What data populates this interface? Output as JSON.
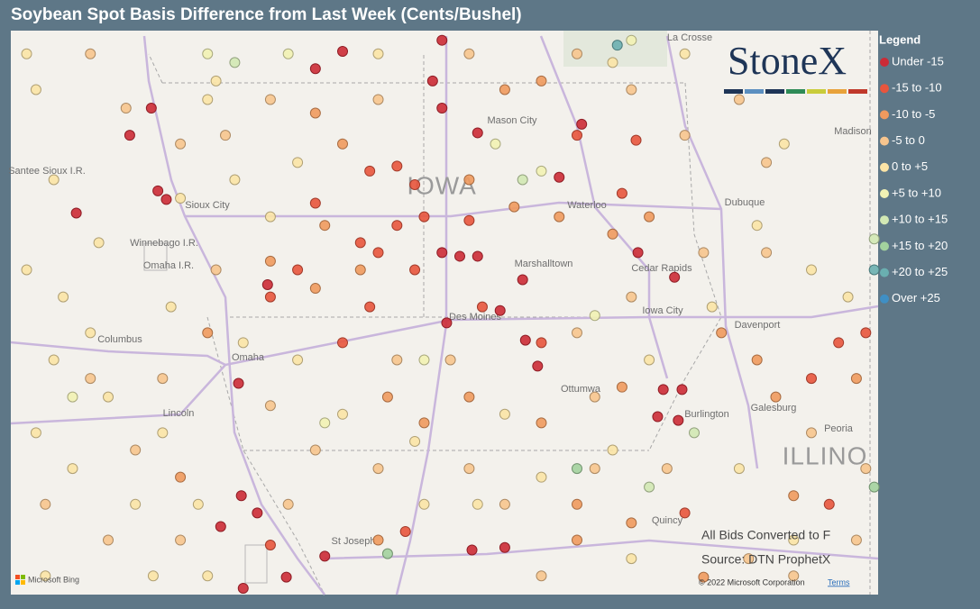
{
  "title": "Soybean Spot Basis Difference from Last Week (Cents/Bushel)",
  "logo": "StoneX",
  "legend": {
    "title": "Legend",
    "items": [
      {
        "label": "Under -15",
        "color": "#cc2b36"
      },
      {
        "label": "-15 to -10",
        "color": "#e8553d"
      },
      {
        "label": "-10 to -5",
        "color": "#f09a5e"
      },
      {
        "label": "-5 to 0",
        "color": "#f7c58e"
      },
      {
        "label": "0 to +5",
        "color": "#fbe4a6"
      },
      {
        "label": "+5 to +10",
        "color": "#f2f2b4"
      },
      {
        "label": "+10 to +15",
        "color": "#d2e8b4"
      },
      {
        "label": "+15 to +20",
        "color": "#a3d29e"
      },
      {
        "label": "+20 to +25",
        "color": "#6aafb0"
      },
      {
        "label": "Over +25",
        "color": "#3f8fc4"
      }
    ]
  },
  "notes": [
    "All Bids Converted to F",
    "Source: DTN ProphetX"
  ],
  "attribution": {
    "bing": "Microsoft Bing",
    "copyright": "© 2022 Microsoft Corporation",
    "terms": "Terms"
  },
  "places": [
    "Sioux City",
    "IOWA",
    "Mason City",
    "Waterloo",
    "Dubuque",
    "Marshalltown",
    "Cedar Rapids",
    "Iowa City",
    "Davenport",
    "Des Moines",
    "Ottumwa",
    "Burlington",
    "Galesburg",
    "Peoria",
    "ILLINO",
    "Omaha",
    "Lincoln",
    "Columbus",
    "St Joseph",
    "Winnebago I.R.",
    "Omaha I.R.",
    "Santee Sioux I.R.",
    "La Crosse",
    "Madison",
    "Quincy"
  ],
  "points": [
    {
      "lon": -94.69,
      "lat": 43.8,
      "bin": 0
    },
    {
      "lon": -93.63,
      "lat": 43.89,
      "bin": 0
    },
    {
      "lon": -94.98,
      "lat": 43.66,
      "bin": 0
    },
    {
      "lon": -93.73,
      "lat": 43.56,
      "bin": 0
    },
    {
      "lon": -93.63,
      "lat": 43.34,
      "bin": 0
    },
    {
      "lon": -96.73,
      "lat": 43.34,
      "bin": 0
    },
    {
      "lon": -96.96,
      "lat": 43.12,
      "bin": 0
    },
    {
      "lon": -96.66,
      "lat": 42.67,
      "bin": 0
    },
    {
      "lon": -96.57,
      "lat": 42.6,
      "bin": 0
    },
    {
      "lon": -97.53,
      "lat": 42.49,
      "bin": 0
    },
    {
      "lon": -93.25,
      "lat": 43.14,
      "bin": 0
    },
    {
      "lon": -92.38,
      "lat": 42.78,
      "bin": 0
    },
    {
      "lon": -92.14,
      "lat": 43.21,
      "bin": 0
    },
    {
      "lon": -91.54,
      "lat": 42.17,
      "bin": 0
    },
    {
      "lon": -93.63,
      "lat": 42.17,
      "bin": 0
    },
    {
      "lon": -93.44,
      "lat": 42.14,
      "bin": 0
    },
    {
      "lon": -93.25,
      "lat": 42.14,
      "bin": 0
    },
    {
      "lon": -92.77,
      "lat": 41.95,
      "bin": 0
    },
    {
      "lon": -93.01,
      "lat": 41.7,
      "bin": 0
    },
    {
      "lon": -93.58,
      "lat": 41.6,
      "bin": 0
    },
    {
      "lon": -92.74,
      "lat": 41.46,
      "bin": 0
    },
    {
      "lon": -92.61,
      "lat": 41.25,
      "bin": 0
    },
    {
      "lon": -91.27,
      "lat": 41.06,
      "bin": 0
    },
    {
      "lon": -91.07,
      "lat": 41.06,
      "bin": 0
    },
    {
      "lon": -91.33,
      "lat": 40.84,
      "bin": 0
    },
    {
      "lon": -91.11,
      "lat": 40.81,
      "bin": 0
    },
    {
      "lon": -95.8,
      "lat": 41.11,
      "bin": 0
    },
    {
      "lon": -95.77,
      "lat": 40.2,
      "bin": 0
    },
    {
      "lon": -95.6,
      "lat": 40.06,
      "bin": 0
    },
    {
      "lon": -95.99,
      "lat": 39.95,
      "bin": 0
    },
    {
      "lon": -94.88,
      "lat": 39.71,
      "bin": 0
    },
    {
      "lon": -93.31,
      "lat": 39.76,
      "bin": 0
    },
    {
      "lon": -92.96,
      "lat": 39.78,
      "bin": 0
    },
    {
      "lon": -95.29,
      "lat": 39.54,
      "bin": 0
    },
    {
      "lon": -95.75,
      "lat": 39.45,
      "bin": 0
    },
    {
      "lon": -91.15,
      "lat": 41.97,
      "bin": 0
    },
    {
      "lon": -95.49,
      "lat": 41.91,
      "bin": 0
    },
    {
      "lon": -94.4,
      "lat": 42.83,
      "bin": 1
    },
    {
      "lon": -94.11,
      "lat": 42.87,
      "bin": 1
    },
    {
      "lon": -93.92,
      "lat": 42.72,
      "bin": 1
    },
    {
      "lon": -94.5,
      "lat": 42.25,
      "bin": 1
    },
    {
      "lon": -94.31,
      "lat": 42.17,
      "bin": 1
    },
    {
      "lon": -95.46,
      "lat": 41.81,
      "bin": 1
    },
    {
      "lon": -94.69,
      "lat": 41.44,
      "bin": 1
    },
    {
      "lon": -93.92,
      "lat": 42.03,
      "bin": 1
    },
    {
      "lon": -93.2,
      "lat": 41.73,
      "bin": 1
    },
    {
      "lon": -92.57,
      "lat": 41.44,
      "bin": 1
    },
    {
      "lon": -92.19,
      "lat": 43.12,
      "bin": 1
    },
    {
      "lon": -91.56,
      "lat": 43.08,
      "bin": 1
    },
    {
      "lon": -89.4,
      "lat": 41.44,
      "bin": 1
    },
    {
      "lon": -89.11,
      "lat": 41.52,
      "bin": 1
    },
    {
      "lon": -89.69,
      "lat": 41.15,
      "bin": 1
    },
    {
      "lon": -89.5,
      "lat": 40.13,
      "bin": 1
    },
    {
      "lon": -93.82,
      "lat": 42.46,
      "bin": 1
    },
    {
      "lon": -94.11,
      "lat": 42.39,
      "bin": 1
    },
    {
      "lon": -94.98,
      "lat": 42.57,
      "bin": 1
    },
    {
      "lon": -95.17,
      "lat": 42.03,
      "bin": 1
    },
    {
      "lon": -94.4,
      "lat": 41.73,
      "bin": 1
    },
    {
      "lon": -93.34,
      "lat": 42.43,
      "bin": 1
    },
    {
      "lon": -91.71,
      "lat": 42.65,
      "bin": 1
    },
    {
      "lon": -95.46,
      "lat": 39.8,
      "bin": 1
    },
    {
      "lon": -94.02,
      "lat": 39.91,
      "bin": 1
    },
    {
      "lon": -91.04,
      "lat": 40.06,
      "bin": 1
    },
    {
      "lon": -92.96,
      "lat": 43.49,
      "bin": 2
    },
    {
      "lon": -92.57,
      "lat": 43.56,
      "bin": 2
    },
    {
      "lon": -92.86,
      "lat": 42.54,
      "bin": 2
    },
    {
      "lon": -92.38,
      "lat": 42.46,
      "bin": 2
    },
    {
      "lon": -91.81,
      "lat": 42.32,
      "bin": 2
    },
    {
      "lon": -91.42,
      "lat": 42.46,
      "bin": 2
    },
    {
      "lon": -94.69,
      "lat": 43.05,
      "bin": 2
    },
    {
      "lon": -94.98,
      "lat": 43.3,
      "bin": 2
    },
    {
      "lon": -95.46,
      "lat": 42.1,
      "bin": 2
    },
    {
      "lon": -94.98,
      "lat": 41.88,
      "bin": 2
    },
    {
      "lon": -94.21,
      "lat": 41.0,
      "bin": 2
    },
    {
      "lon": -93.34,
      "lat": 41.0,
      "bin": 2
    },
    {
      "lon": -92.19,
      "lat": 40.13,
      "bin": 2
    },
    {
      "lon": -91.61,
      "lat": 39.98,
      "bin": 2
    },
    {
      "lon": -90.65,
      "lat": 41.52,
      "bin": 2
    },
    {
      "lon": -90.27,
      "lat": 41.3,
      "bin": 2
    },
    {
      "lon": -89.88,
      "lat": 40.2,
      "bin": 2
    },
    {
      "lon": -90.84,
      "lat": 39.54,
      "bin": 2
    },
    {
      "lon": -96.42,
      "lat": 40.35,
      "bin": 2
    },
    {
      "lon": -96.13,
      "lat": 41.52,
      "bin": 2
    },
    {
      "lon": -93.82,
      "lat": 40.79,
      "bin": 2
    },
    {
      "lon": -94.31,
      "lat": 39.84,
      "bin": 2
    },
    {
      "lon": -92.19,
      "lat": 39.84,
      "bin": 2
    },
    {
      "lon": -92.57,
      "lat": 40.79,
      "bin": 2
    },
    {
      "lon": -91.71,
      "lat": 41.08,
      "bin": 2
    },
    {
      "lon": -90.07,
      "lat": 41.0,
      "bin": 2
    },
    {
      "lon": -89.21,
      "lat": 41.15,
      "bin": 2
    },
    {
      "lon": -93.34,
      "lat": 42.76,
      "bin": 2
    },
    {
      "lon": -94.88,
      "lat": 42.39,
      "bin": 2
    },
    {
      "lon": -94.5,
      "lat": 42.03,
      "bin": 2
    },
    {
      "lon": -97.38,
      "lat": 43.78,
      "bin": 3
    },
    {
      "lon": -97.0,
      "lat": 43.34,
      "bin": 3
    },
    {
      "lon": -96.42,
      "lat": 43.05,
      "bin": 3
    },
    {
      "lon": -95.94,
      "lat": 43.12,
      "bin": 3
    },
    {
      "lon": -95.46,
      "lat": 43.41,
      "bin": 3
    },
    {
      "lon": -94.31,
      "lat": 43.41,
      "bin": 3
    },
    {
      "lon": -93.34,
      "lat": 43.78,
      "bin": 3
    },
    {
      "lon": -92.19,
      "lat": 43.78,
      "bin": 3
    },
    {
      "lon": -91.61,
      "lat": 43.49,
      "bin": 3
    },
    {
      "lon": -91.04,
      "lat": 43.12,
      "bin": 3
    },
    {
      "lon": -90.46,
      "lat": 43.41,
      "bin": 3
    },
    {
      "lon": -90.17,
      "lat": 42.9,
      "bin": 3
    },
    {
      "lon": -90.17,
      "lat": 42.17,
      "bin": 3
    },
    {
      "lon": -90.84,
      "lat": 42.17,
      "bin": 3
    },
    {
      "lon": -91.61,
      "lat": 41.81,
      "bin": 3
    },
    {
      "lon": -92.19,
      "lat": 41.52,
      "bin": 3
    },
    {
      "lon": -95.46,
      "lat": 40.93,
      "bin": 3
    },
    {
      "lon": -94.98,
      "lat": 40.57,
      "bin": 3
    },
    {
      "lon": -94.31,
      "lat": 40.42,
      "bin": 3
    },
    {
      "lon": -93.34,
      "lat": 40.42,
      "bin": 3
    },
    {
      "lon": -92.96,
      "lat": 40.13,
      "bin": 3
    },
    {
      "lon": -92.0,
      "lat": 40.42,
      "bin": 3
    },
    {
      "lon": -91.23,
      "lat": 40.42,
      "bin": 3
    },
    {
      "lon": -90.36,
      "lat": 39.69,
      "bin": 3
    },
    {
      "lon": -89.88,
      "lat": 39.55,
      "bin": 3
    },
    {
      "lon": -89.21,
      "lat": 39.84,
      "bin": 3
    },
    {
      "lon": -97.38,
      "lat": 41.15,
      "bin": 3
    },
    {
      "lon": -96.9,
      "lat": 40.57,
      "bin": 3
    },
    {
      "lon": -96.42,
      "lat": 39.84,
      "bin": 3
    },
    {
      "lon": -97.86,
      "lat": 40.13,
      "bin": 3
    },
    {
      "lon": -97.19,
      "lat": 39.84,
      "bin": 3
    },
    {
      "lon": -95.27,
      "lat": 40.13,
      "bin": 3
    },
    {
      "lon": -92.57,
      "lat": 39.55,
      "bin": 3
    },
    {
      "lon": -89.69,
      "lat": 40.71,
      "bin": 3
    },
    {
      "lon": -89.11,
      "lat": 40.42,
      "bin": 3
    },
    {
      "lon": -96.04,
      "lat": 42.03,
      "bin": 3
    },
    {
      "lon": -96.61,
      "lat": 41.15,
      "bin": 3
    },
    {
      "lon": -94.11,
      "lat": 41.3,
      "bin": 3
    },
    {
      "lon": -92.0,
      "lat": 41.0,
      "bin": 3
    },
    {
      "lon": -93.54,
      "lat": 41.3,
      "bin": 3
    },
    {
      "lon": -98.06,
      "lat": 43.78,
      "bin": 4
    },
    {
      "lon": -97.96,
      "lat": 43.49,
      "bin": 4
    },
    {
      "lon": -97.77,
      "lat": 42.76,
      "bin": 4
    },
    {
      "lon": -98.06,
      "lat": 42.03,
      "bin": 4
    },
    {
      "lon": -97.67,
      "lat": 41.81,
      "bin": 4
    },
    {
      "lon": -97.38,
      "lat": 41.52,
      "bin": 4
    },
    {
      "lon": -97.19,
      "lat": 41.0,
      "bin": 4
    },
    {
      "lon": -97.96,
      "lat": 40.71,
      "bin": 4
    },
    {
      "lon": -97.57,
      "lat": 40.42,
      "bin": 4
    },
    {
      "lon": -96.61,
      "lat": 40.71,
      "bin": 4
    },
    {
      "lon": -96.23,
      "lat": 40.13,
      "bin": 4
    },
    {
      "lon": -96.9,
      "lat": 40.13,
      "bin": 4
    },
    {
      "lon": -97.86,
      "lat": 39.55,
      "bin": 4
    },
    {
      "lon": -96.71,
      "lat": 39.55,
      "bin": 4
    },
    {
      "lon": -96.13,
      "lat": 39.55,
      "bin": 4
    },
    {
      "lon": -97.29,
      "lat": 42.25,
      "bin": 4
    },
    {
      "lon": -96.42,
      "lat": 42.61,
      "bin": 4
    },
    {
      "lon": -95.84,
      "lat": 42.76,
      "bin": 4
    },
    {
      "lon": -95.46,
      "lat": 42.46,
      "bin": 4
    },
    {
      "lon": -95.17,
      "lat": 42.9,
      "bin": 4
    },
    {
      "lon": -95.75,
      "lat": 41.44,
      "bin": 4
    },
    {
      "lon": -95.17,
      "lat": 41.3,
      "bin": 4
    },
    {
      "lon": -94.69,
      "lat": 40.86,
      "bin": 4
    },
    {
      "lon": -93.92,
      "lat": 40.64,
      "bin": 4
    },
    {
      "lon": -93.25,
      "lat": 40.13,
      "bin": 4
    },
    {
      "lon": -92.57,
      "lat": 40.35,
      "bin": 4
    },
    {
      "lon": -91.81,
      "lat": 40.57,
      "bin": 4
    },
    {
      "lon": -91.42,
      "lat": 41.3,
      "bin": 4
    },
    {
      "lon": -90.75,
      "lat": 41.73,
      "bin": 4
    },
    {
      "lon": -90.27,
      "lat": 42.39,
      "bin": 4
    },
    {
      "lon": -89.69,
      "lat": 42.03,
      "bin": 4
    },
    {
      "lon": -89.3,
      "lat": 41.81,
      "bin": 4
    },
    {
      "lon": -89.98,
      "lat": 43.05,
      "bin": 4
    },
    {
      "lon": -91.04,
      "lat": 43.78,
      "bin": 4
    },
    {
      "lon": -91.81,
      "lat": 43.71,
      "bin": 4
    },
    {
      "lon": -94.31,
      "lat": 43.78,
      "bin": 4
    },
    {
      "lon": -96.13,
      "lat": 43.41,
      "bin": 4
    },
    {
      "lon": -96.04,
      "lat": 43.56,
      "bin": 4
    },
    {
      "lon": -97.77,
      "lat": 41.3,
      "bin": 4
    },
    {
      "lon": -96.52,
      "lat": 41.73,
      "bin": 4
    },
    {
      "lon": -91.61,
      "lat": 39.69,
      "bin": 4
    },
    {
      "lon": -90.46,
      "lat": 40.42,
      "bin": 4
    },
    {
      "lon": -89.88,
      "lat": 39.84,
      "bin": 4
    },
    {
      "lon": -92.96,
      "lat": 40.86,
      "bin": 4
    },
    {
      "lon": -93.82,
      "lat": 40.13,
      "bin": 4
    },
    {
      "lon": -95.27,
      "lat": 43.78,
      "bin": 5
    },
    {
      "lon": -96.13,
      "lat": 43.78,
      "bin": 5
    },
    {
      "lon": -92.57,
      "lat": 42.83,
      "bin": 5
    },
    {
      "lon": -91.61,
      "lat": 43.89,
      "bin": 5
    },
    {
      "lon": -92.0,
      "lat": 41.66,
      "bin": 5
    },
    {
      "lon": -97.57,
      "lat": 41.0,
      "bin": 5
    },
    {
      "lon": -94.88,
      "lat": 40.79,
      "bin": 5
    },
    {
      "lon": -93.82,
      "lat": 41.3,
      "bin": 5
    },
    {
      "lon": -93.06,
      "lat": 43.05,
      "bin": 5
    },
    {
      "lon": -95.84,
      "lat": 43.71,
      "bin": 6
    },
    {
      "lon": -91.42,
      "lat": 40.27,
      "bin": 6
    },
    {
      "lon": -90.94,
      "lat": 40.71,
      "bin": 6
    },
    {
      "lon": -92.77,
      "lat": 42.76,
      "bin": 6
    },
    {
      "lon": -89.02,
      "lat": 42.28,
      "bin": 6
    },
    {
      "lon": -92.19,
      "lat": 40.42,
      "bin": 7
    },
    {
      "lon": -94.21,
      "lat": 39.73,
      "bin": 7
    },
    {
      "lon": -89.02,
      "lat": 40.27,
      "bin": 7
    },
    {
      "lon": -91.76,
      "lat": 43.85,
      "bin": 8
    },
    {
      "lon": -89.02,
      "lat": 42.03,
      "bin": 8
    }
  ]
}
